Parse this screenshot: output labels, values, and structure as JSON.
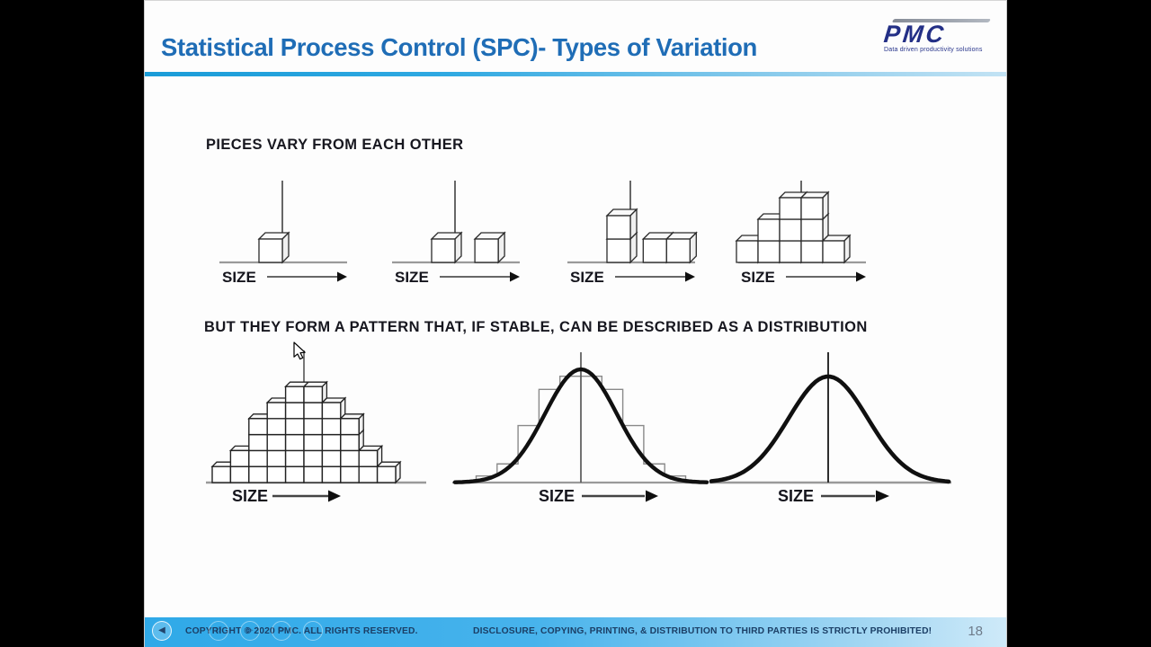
{
  "header": {
    "title": "Statistical Process Control (SPC)- Types of Variation",
    "logo_text": "PMC",
    "logo_tagline": "Data driven productivity solutions"
  },
  "content": {
    "heading1": "PIECES VARY FROM EACH OTHER",
    "heading2": "BUT THEY FORM A PATTERN THAT, IF STABLE, CAN BE DESCRIBED AS A DISTRIBUTION",
    "axis_label": "SIZE"
  },
  "diagrams": {
    "row1": [
      {
        "name": "single-piece",
        "columns": [
          {
            "x": -1,
            "h": 1
          }
        ]
      },
      {
        "name": "two-pieces",
        "columns": [
          {
            "x": -1,
            "h": 1
          },
          {
            "x": 0.85,
            "h": 1
          }
        ]
      },
      {
        "name": "stack-and-pair",
        "columns": [
          {
            "x": -1,
            "h": 2
          },
          {
            "x": 0.55,
            "h": 1
          },
          {
            "x": 1.55,
            "h": 1
          }
        ]
      },
      {
        "name": "small-histogram",
        "columns": [
          {
            "x": -3,
            "h": 1
          },
          {
            "x": -2,
            "h": 2
          },
          {
            "x": -1,
            "h": 3
          },
          {
            "x": 0,
            "h": 3
          },
          {
            "x": 1,
            "h": 1
          }
        ]
      }
    ],
    "pyramid_heights": [
      1,
      2,
      4,
      5,
      6,
      6,
      5,
      4,
      2,
      1
    ],
    "histogram_steps": [
      0.06,
      0.17,
      0.52,
      0.85,
      0.97,
      0.97,
      0.85,
      0.52,
      0.17,
      0.06
    ]
  },
  "footer": {
    "copyright": "COPYRIGHT © 2020 PMC. ALL RIGHTS RESERVED.",
    "disclosure": "DISCLOSURE, COPYING, PRINTING, & DISTRIBUTION TO THIRD PARTIES IS STRICTLY PROHIBITED!",
    "page_number": "18"
  },
  "player": {
    "controls": [
      {
        "name": "back",
        "glyph": "◀",
        "prominent": true
      },
      {
        "name": "rewind",
        "glyph": "↺",
        "prominent": false
      },
      {
        "name": "play",
        "glyph": "▶",
        "prominent": false
      },
      {
        "name": "forward",
        "glyph": "↻",
        "prominent": false
      },
      {
        "name": "fullscreen",
        "glyph": "◻",
        "prominent": false
      }
    ]
  },
  "colors": {
    "title_blue": "#1f6db6",
    "rule_left": "#1a9cd8",
    "rule_right": "#c3e3f4",
    "footer_bar_left": "#2fa9e8",
    "footer_bar_right": "#cfeaf9",
    "footer_text": "#1b3f66",
    "logo_navy": "#232f86",
    "page_number": "#6e7b8a"
  }
}
